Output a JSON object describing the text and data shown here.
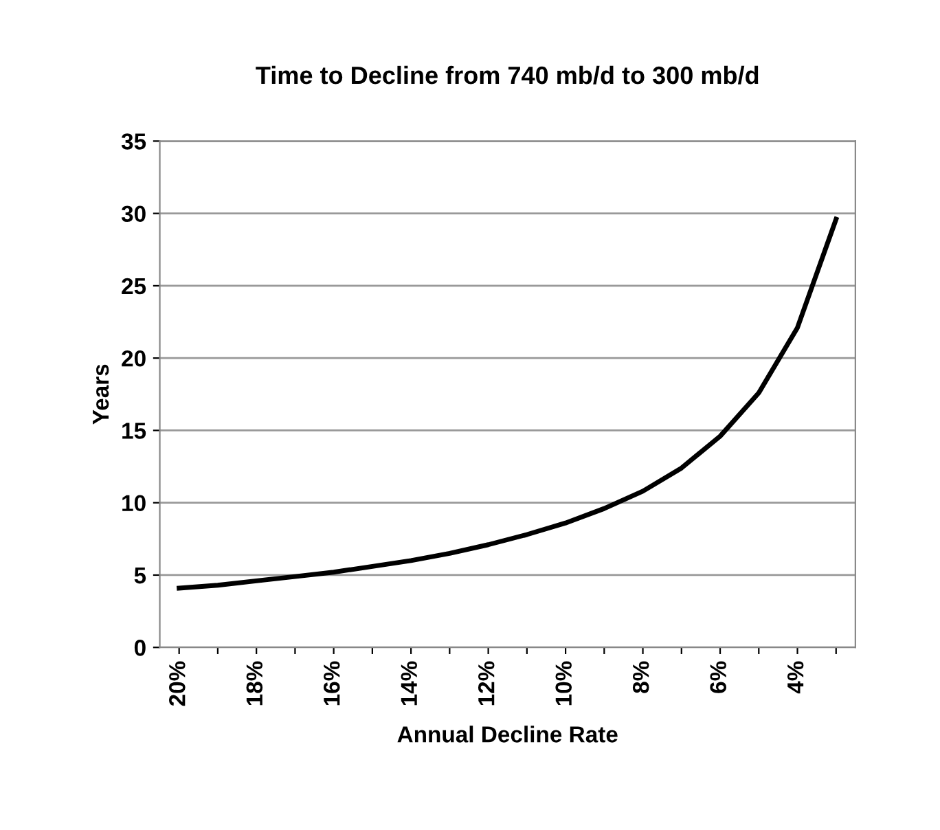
{
  "chart_data": {
    "type": "line",
    "title": "Time to Decline from 740 mb/d to 300 mb/d",
    "xlabel": "Annual Decline Rate",
    "ylabel": "Years",
    "categories": [
      "20%",
      null,
      "18%",
      null,
      "16%",
      null,
      "14%",
      null,
      "12%",
      null,
      "10%",
      null,
      "8%",
      null,
      "6%",
      null,
      "4%",
      null
    ],
    "series": [
      {
        "color": "#000000",
        "values": [
          4.1,
          4.3,
          4.6,
          4.9,
          5.2,
          5.6,
          6.0,
          6.5,
          7.1,
          7.8,
          8.6,
          9.6,
          10.8,
          12.4,
          14.6,
          17.6,
          22.1,
          29.6
        ]
      }
    ],
    "ylim": [
      0,
      35
    ],
    "yticks": [
      0,
      5,
      10,
      15,
      20,
      25,
      30,
      35
    ],
    "grid": "y",
    "marker": "none",
    "line_style": "solid"
  }
}
